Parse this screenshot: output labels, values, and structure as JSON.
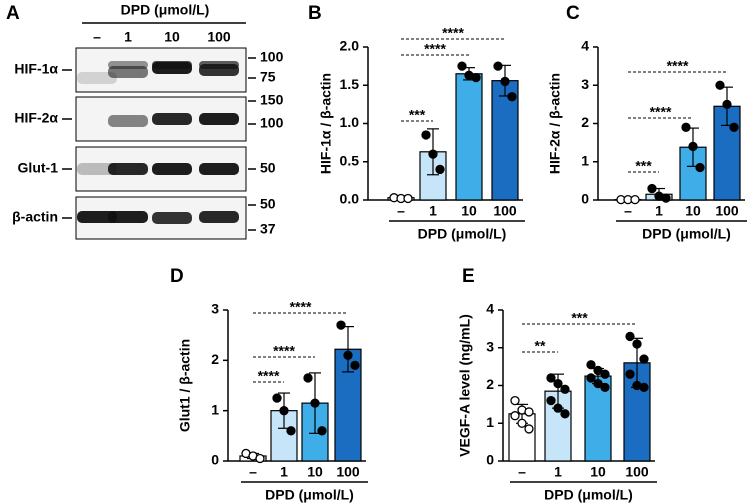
{
  "blot": {
    "label": "A",
    "title": "DPD (μmol/L)",
    "lanes": [
      "–",
      "1",
      "10",
      "100"
    ],
    "rows": [
      {
        "name": "HIF-1α",
        "markers": [
          "100",
          "75"
        ]
      },
      {
        "name": "HIF-2α",
        "markers": [
          "150",
          "100"
        ]
      },
      {
        "name": "Glut-1",
        "markers": [
          "50"
        ]
      },
      {
        "name": "β-actin",
        "markers": [
          "50",
          "37"
        ]
      }
    ]
  },
  "chart_data": [
    {
      "type": "bar",
      "label": "B",
      "ylabel": "HIF-1α / β-actin",
      "xlabel": "DPD (μmol/L)",
      "categories": [
        "–",
        "1",
        "10",
        "100"
      ],
      "colors": [
        "#ffffff",
        "#c7e5f8",
        "#3faee8",
        "#1b6dc1"
      ],
      "values": [
        0.03,
        0.63,
        1.65,
        1.56
      ],
      "errors": [
        0.02,
        0.3,
        0.08,
        0.2
      ],
      "points": [
        [
          0.03,
          0.02,
          0.02
        ],
        [
          0.85,
          0.6,
          0.4
        ],
        [
          1.75,
          1.63,
          1.6
        ],
        [
          1.75,
          1.55,
          1.35
        ]
      ],
      "ylim": [
        0,
        2
      ],
      "yticks": [
        {
          "value": 0,
          "label": "0.0"
        },
        0.5,
        {
          "value": 1,
          "label": "1.0"
        },
        1.5,
        {
          "value": 2,
          "label": "2.0"
        }
      ],
      "annotations": [
        "***",
        "****",
        "****"
      ]
    },
    {
      "type": "bar",
      "label": "C",
      "ylabel": "HIF-2α / β-actin",
      "xlabel": "DPD (μmol/L)",
      "categories": [
        "–",
        "1",
        "10",
        "100"
      ],
      "colors": [
        "#ffffff",
        "#c7e5f8",
        "#3faee8",
        "#1b6dc1"
      ],
      "values": [
        0.01,
        0.15,
        1.38,
        2.45
      ],
      "errors": [
        0.01,
        0.15,
        0.5,
        0.5
      ],
      "points": [
        [
          0.01,
          0.01,
          0.01
        ],
        [
          0.3,
          0.1,
          0.05
        ],
        [
          1.9,
          1.4,
          0.85
        ],
        [
          3.0,
          2.5,
          1.9
        ]
      ],
      "ylim": [
        0,
        4
      ],
      "yticks": [
        0,
        1,
        2,
        3,
        4
      ],
      "annotations": [
        "***",
        "****",
        "****"
      ]
    },
    {
      "type": "bar",
      "label": "D",
      "ylabel": "Glut1 / β-actin",
      "xlabel": "DPD (μmol/L)",
      "categories": [
        "–",
        "1",
        "10",
        "100"
      ],
      "colors": [
        "#ffffff",
        "#c7e5f8",
        "#3faee8",
        "#1b6dc1"
      ],
      "values": [
        0.1,
        1.0,
        1.15,
        2.22
      ],
      "errors": [
        0.05,
        0.35,
        0.6,
        0.45
      ],
      "points": [
        [
          0.15,
          0.1,
          0.05
        ],
        [
          1.25,
          1.0,
          0.6
        ],
        [
          1.65,
          1.15,
          0.6
        ],
        [
          2.7,
          2.1,
          1.9
        ]
      ],
      "ylim": [
        0,
        3
      ],
      "yticks": [
        0,
        1,
        2,
        3
      ],
      "annotations": [
        "****",
        "****",
        "****"
      ]
    },
    {
      "type": "bar",
      "label": "E",
      "ylabel": "VEGF-A level (ng/mL)",
      "xlabel": "DPD (μmol/L)",
      "categories": [
        "–",
        "1",
        "10",
        "100"
      ],
      "colors": [
        "#ffffff",
        "#c7e5f8",
        "#3faee8",
        "#1b6dc1"
      ],
      "values": [
        1.25,
        1.85,
        2.25,
        2.6
      ],
      "errors": [
        0.25,
        0.45,
        0.2,
        0.65
      ],
      "points": [
        [
          1.6,
          1.35,
          1.3,
          1.2,
          1.0,
          0.85
        ],
        [
          2.2,
          2.05,
          1.9,
          1.6,
          1.4,
          1.25
        ],
        [
          2.55,
          2.4,
          2.3,
          2.2,
          2.05,
          1.95
        ],
        [
          3.3,
          3.1,
          2.7,
          2.3,
          2.0,
          1.95
        ]
      ],
      "ylim": [
        0,
        4
      ],
      "yticks": [
        0,
        1,
        2,
        3,
        4
      ],
      "annotations": [
        "**",
        "***"
      ]
    }
  ]
}
